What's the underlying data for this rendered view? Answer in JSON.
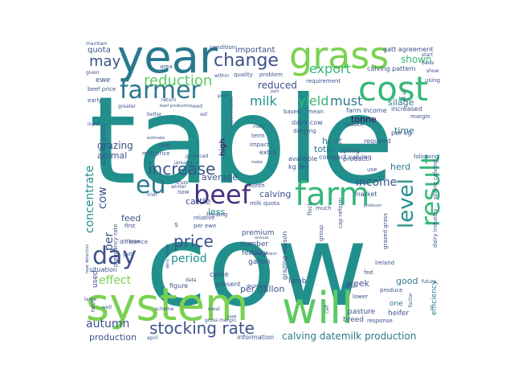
{
  "words": [
    {
      "text": "table",
      "size": 150,
      "color": "#21908d"
    },
    {
      "text": "cow",
      "size": 140,
      "color": "#21908d"
    },
    {
      "text": "year",
      "size": 56,
      "color": "#2a788e"
    },
    {
      "text": "system",
      "size": 56,
      "color": "#7ad151"
    },
    {
      "text": "will",
      "size": 54,
      "color": "#5ec962"
    },
    {
      "text": "grass",
      "size": 46,
      "color": "#7ad151"
    },
    {
      "text": "cost",
      "size": 42,
      "color": "#35b779"
    },
    {
      "text": "farm",
      "size": 40,
      "color": "#35b779"
    },
    {
      "text": "farmer",
      "size": 30,
      "color": "#2a788e"
    },
    {
      "text": "beef",
      "size": 32,
      "color": "#46327e"
    },
    {
      "text": "result",
      "size": 32,
      "color": "#35b779"
    },
    {
      "text": "level",
      "size": 26,
      "color": "#21908d"
    },
    {
      "text": "eu",
      "size": 30,
      "color": "#2a788e"
    },
    {
      "text": "day",
      "size": 30,
      "color": "#3b528b"
    },
    {
      "text": "change",
      "size": 22,
      "color": "#3b528b"
    },
    {
      "text": "reduction",
      "size": 18,
      "color": "#5ec962"
    },
    {
      "text": "stocking rate",
      "size": 20,
      "color": "#3b528b"
    },
    {
      "text": "price",
      "size": 20,
      "color": "#3b528b"
    },
    {
      "text": "increase",
      "size": 20,
      "color": "#3b528b"
    },
    {
      "text": "export",
      "size": 16,
      "color": "#35b779"
    },
    {
      "text": "must",
      "size": 16,
      "color": "#2a788e"
    },
    {
      "text": "yield",
      "size": 16,
      "color": "#35b779"
    },
    {
      "text": "milk",
      "size": 16,
      "color": "#21908d"
    },
    {
      "text": "may",
      "size": 18,
      "color": "#3b528b"
    },
    {
      "text": "shown",
      "size": 12,
      "color": "#35b779"
    },
    {
      "text": "concentrate",
      "size": 14,
      "color": "#21908d"
    },
    {
      "text": "cow",
      "size": 14,
      "color": "#3b528b"
    },
    {
      "text": "per",
      "size": 14,
      "color": "#3b528b"
    },
    {
      "text": "period",
      "size": 14,
      "color": "#21908d"
    },
    {
      "text": "effect",
      "size": 14,
      "color": "#7ad151"
    },
    {
      "text": "autumn",
      "size": 14,
      "color": "#3b528b"
    },
    {
      "text": "calving datemilk production",
      "size": 12,
      "color": "#2a788e"
    },
    {
      "text": "income",
      "size": 14,
      "color": "#3b528b"
    },
    {
      "text": "reduced",
      "size": 12,
      "color": "#3b528b"
    },
    {
      "text": "grazing",
      "size": 12,
      "color": "#3b528b"
    },
    {
      "text": "animal",
      "size": 11,
      "color": "#3b528b"
    },
    {
      "text": "average",
      "size": 11,
      "color": "#3b528b"
    },
    {
      "text": "calving",
      "size": 11,
      "color": "#3b528b"
    },
    {
      "text": "cattle",
      "size": 11,
      "color": "#3b528b"
    },
    {
      "text": "feed",
      "size": 11,
      "color": "#3b528b"
    },
    {
      "text": "less",
      "size": 11,
      "color": "#21908d"
    },
    {
      "text": "heat",
      "size": 11,
      "color": "#2a788e"
    },
    {
      "text": "total",
      "size": 11,
      "color": "#2a788e"
    },
    {
      "text": "herd",
      "size": 11,
      "color": "#2a788e"
    },
    {
      "text": "tonne",
      "size": 11,
      "color": "#440154"
    },
    {
      "text": "silage",
      "size": 11,
      "color": "#2a788e"
    },
    {
      "text": "time",
      "size": 11,
      "color": "#2a788e"
    },
    {
      "text": "week",
      "size": 11,
      "color": "#3b528b"
    },
    {
      "text": "good",
      "size": 11,
      "color": "#2a788e"
    },
    {
      "text": "production",
      "size": 11,
      "color": "#3b528b"
    },
    {
      "text": "per gallon",
      "size": 11,
      "color": "#3b528b"
    },
    {
      "text": "important",
      "size": 10,
      "color": "#3b528b"
    },
    {
      "text": "quota",
      "size": 10,
      "color": "#3b528b"
    },
    {
      "text": "ewe",
      "size": 9,
      "color": "#3b528b"
    },
    {
      "text": "high",
      "size": 10,
      "color": "#440154"
    },
    {
      "text": "premium",
      "size": 9,
      "color": "#3b528b"
    },
    {
      "text": "number",
      "size": 9,
      "color": "#3b528b"
    },
    {
      "text": "fertility",
      "size": 9,
      "color": "#3b528b"
    },
    {
      "text": "gallon",
      "size": 9,
      "color": "#3b528b"
    },
    {
      "text": "calve",
      "size": 9,
      "color": "#3b528b"
    },
    {
      "text": "used",
      "size": 9,
      "color": "#3b528b"
    },
    {
      "text": "breed",
      "size": 9,
      "color": "#3b528b"
    },
    {
      "text": "pasture",
      "size": 9,
      "color": "#3b528b"
    },
    {
      "text": "heifer",
      "size": 9,
      "color": "#3b528b"
    },
    {
      "text": "one",
      "size": 9,
      "color": "#2a788e"
    },
    {
      "text": "efficiency",
      "size": 9,
      "color": "#2a788e"
    },
    {
      "text": "lamb",
      "size": 9,
      "color": "#3b528b"
    },
    {
      "text": "figure",
      "size": 8,
      "color": "#3b528b"
    },
    {
      "text": "present",
      "size": 8,
      "color": "#3b528b"
    },
    {
      "text": "situation",
      "size": 8,
      "color": "#3b528b"
    },
    {
      "text": "information",
      "size": 8,
      "color": "#3b528b"
    },
    {
      "text": "grazing season",
      "size": 8,
      "color": "#3b528b"
    },
    {
      "text": "dairy cow",
      "size": 8,
      "color": "#3b528b"
    },
    {
      "text": "compact calving",
      "size": 8,
      "color": "#3b528b"
    },
    {
      "text": "market",
      "size": 8,
      "color": "#3b528b"
    },
    {
      "text": "kg dm",
      "size": 8,
      "color": "#3b528b"
    },
    {
      "text": "available",
      "size": 8,
      "color": "#3b528b"
    },
    {
      "text": "extra",
      "size": 8,
      "color": "#3b528b"
    },
    {
      "text": "product",
      "size": 8,
      "color": "#3b528b"
    },
    {
      "text": "spring",
      "size": 8,
      "color": "#3b528b"
    },
    {
      "text": "required",
      "size": 8,
      "color": "#3b528b"
    },
    {
      "text": "per kg",
      "size": 8,
      "color": "#3b528b"
    },
    {
      "text": "farm income",
      "size": 8,
      "color": "#3b528b"
    },
    {
      "text": "calving pattern",
      "size": 8,
      "color": "#3b528b"
    },
    {
      "text": "gatt agreement",
      "size": 8,
      "color": "#3b528b"
    },
    {
      "text": "increased",
      "size": 8,
      "color": "#3b528b"
    },
    {
      "text": "margin",
      "size": 7,
      "color": "#3b528b"
    },
    {
      "text": "following",
      "size": 7,
      "color": "#3b528b"
    },
    {
      "text": "spring calving",
      "size": 7,
      "color": "#3b528b"
    },
    {
      "text": "dairy industry",
      "size": 7,
      "color": "#3b528b"
    },
    {
      "text": "grazed grass",
      "size": 7,
      "color": "#3b528b"
    },
    {
      "text": "ireland",
      "size": 7,
      "color": "#3b528b"
    },
    {
      "text": "fed",
      "size": 7,
      "color": "#3b528b"
    },
    {
      "text": "group",
      "size": 7,
      "color": "#3b528b"
    },
    {
      "text": "cap reform",
      "size": 7,
      "color": "#3b528b"
    },
    {
      "text": "much",
      "size": 7,
      "color": "#3b528b"
    },
    {
      "text": "flock",
      "size": 7,
      "color": "#3b528b"
    },
    {
      "text": "lower",
      "size": 7,
      "color": "#3b528b"
    },
    {
      "text": "response",
      "size": 7,
      "color": "#3b528b"
    },
    {
      "text": "produce",
      "size": 7,
      "color": "#3b528b"
    },
    {
      "text": "relative",
      "size": 7,
      "color": "#3b528b"
    },
    {
      "text": "condition",
      "size": 7,
      "color": "#3b528b"
    },
    {
      "text": "month",
      "size": 7,
      "color": "#3b528b"
    },
    {
      "text": "term",
      "size": 7,
      "color": "#3b528b"
    },
    {
      "text": "impact",
      "size": 7,
      "color": "#3b528b"
    },
    {
      "text": "thus",
      "size": 7,
      "color": "#3b528b"
    },
    {
      "text": "now",
      "size": 7,
      "color": "#3b528b"
    },
    {
      "text": "per ewe",
      "size": 7,
      "color": "#3b528b"
    },
    {
      "text": "milk price",
      "size": 7,
      "color": "#3b528b"
    },
    {
      "text": "rate",
      "size": 7,
      "color": "#3b528b"
    },
    {
      "text": "difference",
      "size": 7,
      "color": "#3b528b"
    },
    {
      "text": "pregnancy rate",
      "size": 7,
      "color": "#3b528b"
    },
    {
      "text": "first",
      "size": 7,
      "color": "#3b528b"
    },
    {
      "text": "beef price",
      "size": 7,
      "color": "#3b528b"
    },
    {
      "text": "early",
      "size": 7,
      "color": "#3b528b"
    },
    {
      "text": "given",
      "size": 6,
      "color": "#3b528b"
    },
    {
      "text": "area",
      "size": 7,
      "color": "#3b528b"
    },
    {
      "text": "quality",
      "size": 7,
      "color": "#3b528b"
    },
    {
      "text": "problem",
      "size": 7,
      "color": "#3b528b"
    },
    {
      "text": "dairying",
      "size": 7,
      "color": "#3b528b"
    },
    {
      "text": "based",
      "size": 7,
      "color": "#3b528b"
    },
    {
      "text": "mean",
      "size": 7,
      "color": "#3b528b"
    },
    {
      "text": "reduce",
      "size": 7,
      "color": "#3b528b"
    },
    {
      "text": "use",
      "size": 7,
      "color": "#3b528b"
    },
    {
      "text": "requirement",
      "size": 7,
      "color": "#3b528b"
    },
    {
      "text": "using",
      "size": 7,
      "color": "#3b528b"
    },
    {
      "text": "start",
      "size": 6,
      "color": "#3b528b"
    },
    {
      "text": "basis",
      "size": 6,
      "color": "#3b528b"
    },
    {
      "text": "show",
      "size": 6,
      "color": "#3b528b"
    },
    {
      "text": "milk quota",
      "size": 7,
      "color": "#3b528b"
    },
    {
      "text": "feeding",
      "size": 7,
      "color": "#3b528b"
    },
    {
      "text": "two",
      "size": 7,
      "color": "#3b528b"
    },
    {
      "text": "scheme",
      "size": 6,
      "color": "#3b528b"
    },
    {
      "text": "meal",
      "size": 6,
      "color": "#3b528b"
    },
    {
      "text": "data",
      "size": 6,
      "color": "#3b528b"
    },
    {
      "text": "calf",
      "size": 6,
      "color": "#3b528b"
    },
    {
      "text": "order",
      "size": 6,
      "color": "#3b528b"
    },
    {
      "text": "future",
      "size": 6,
      "color": "#3b528b"
    },
    {
      "text": "factor",
      "size": 6,
      "color": "#3b528b"
    },
    {
      "text": "maintain",
      "size": 6,
      "color": "#3b528b"
    },
    {
      "text": "within",
      "size": 6,
      "color": "#3b528b"
    },
    {
      "text": "need",
      "size": 6,
      "color": "#3b528b"
    },
    {
      "text": "set",
      "size": 6,
      "color": "#3b528b"
    },
    {
      "text": "gatt",
      "size": 6,
      "color": "#3b528b"
    },
    {
      "text": "type",
      "size": 6,
      "color": "#3b528b"
    },
    {
      "text": "well",
      "size": 6,
      "color": "#3b528b"
    },
    {
      "text": "large",
      "size": 6,
      "color": "#3b528b"
    },
    {
      "text": "input",
      "size": 6,
      "color": "#3b528b"
    },
    {
      "text": "irish",
      "size": 6,
      "color": "#3b528b"
    },
    {
      "text": "winter",
      "size": 6,
      "color": "#3b528b"
    },
    {
      "text": "produced",
      "size": 6,
      "color": "#3b528b"
    },
    {
      "text": "january",
      "size": 6,
      "color": "#3b528b"
    },
    {
      "text": "make",
      "size": 5,
      "color": "#3b528b"
    },
    {
      "text": "many",
      "size": 5,
      "color": "#3b528b"
    },
    {
      "text": "part",
      "size": 5,
      "color": "#3b528b"
    },
    {
      "text": "poor",
      "size": 6,
      "color": "#3b528b"
    },
    {
      "text": "better",
      "size": 6,
      "color": "#3b528b"
    },
    {
      "text": "return",
      "size": 6,
      "color": "#3b528b"
    },
    {
      "text": "greater",
      "size": 6,
      "color": "#3b528b"
    },
    {
      "text": "estimate",
      "size": 5,
      "color": "#3b528b"
    },
    {
      "text": "december",
      "size": 5,
      "color": "#3b528b"
    },
    {
      "text": "management",
      "size": 5,
      "color": "#3b528b"
    },
    {
      "text": "annual",
      "size": 5,
      "color": "#3b528b"
    },
    {
      "text": "april",
      "size": 6,
      "color": "#3b528b"
    },
    {
      "text": "gross margin",
      "size": 6,
      "color": "#3b528b"
    },
    {
      "text": "producer",
      "size": 5,
      "color": "#3b528b"
    },
    {
      "text": "case",
      "size": 5,
      "color": "#3b528b"
    },
    {
      "text": "extended grazing",
      "size": 6,
      "color": "#3b528b"
    },
    {
      "text": "heat detection",
      "size": 5,
      "color": "#3b528b"
    },
    {
      "text": "supplementation",
      "size": 5,
      "color": "#3b528b"
    },
    {
      "text": "dairy farmer",
      "size": 5,
      "color": "#3b528b"
    },
    {
      "text": "beef production",
      "size": 5,
      "color": "#3b528b"
    },
    {
      "text": "j",
      "size": 7,
      "color": "#3b528b"
    },
    {
      "text": "s",
      "size": 9,
      "color": "#3b528b"
    },
    {
      "text": "et al",
      "size": 6,
      "color": "#3b528b"
    }
  ]
}
